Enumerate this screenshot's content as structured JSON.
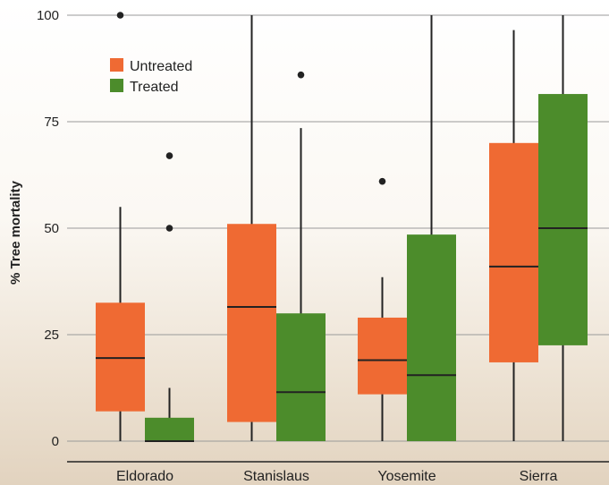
{
  "chart_data": {
    "type": "box",
    "ylabel": "% Tree mortality",
    "ylim": [
      0,
      100
    ],
    "yticks": [
      0,
      25,
      50,
      75,
      100
    ],
    "grid": true,
    "legend_position": "top-left",
    "categories": [
      "Eldorado",
      "Stanislaus",
      "Yosemite",
      "Sierra"
    ],
    "series": [
      {
        "name": "Untreated",
        "color": "#EF6A33",
        "boxes": [
          {
            "whisker_low": 0,
            "q1": 7,
            "median": 19.5,
            "q3": 32.5,
            "whisker_high": 55,
            "outliers": [
              100
            ]
          },
          {
            "whisker_low": 0,
            "q1": 4.5,
            "median": 31.5,
            "q3": 51,
            "whisker_high": 100,
            "outliers": []
          },
          {
            "whisker_low": 0,
            "q1": 11,
            "median": 19,
            "q3": 29,
            "whisker_high": 38.5,
            "outliers": [
              61
            ]
          },
          {
            "whisker_low": 0,
            "q1": 18.5,
            "median": 41,
            "q3": 70,
            "whisker_high": 96.5,
            "outliers": []
          }
        ]
      },
      {
        "name": "Treated",
        "color": "#4C8C2B",
        "boxes": [
          {
            "whisker_low": 0,
            "q1": 0,
            "median": 0,
            "q3": 5.5,
            "whisker_high": 12.5,
            "outliers": [
              50,
              67
            ]
          },
          {
            "whisker_low": 0,
            "q1": 0,
            "median": 11.5,
            "q3": 30,
            "whisker_high": 73.5,
            "outliers": [
              86
            ]
          },
          {
            "whisker_low": 0,
            "q1": 0,
            "median": 15.5,
            "q3": 48.5,
            "whisker_high": 100,
            "outliers": []
          },
          {
            "whisker_low": 0,
            "q1": 22.5,
            "median": 50,
            "q3": 81.5,
            "whisker_high": 100,
            "outliers": []
          }
        ]
      }
    ]
  }
}
